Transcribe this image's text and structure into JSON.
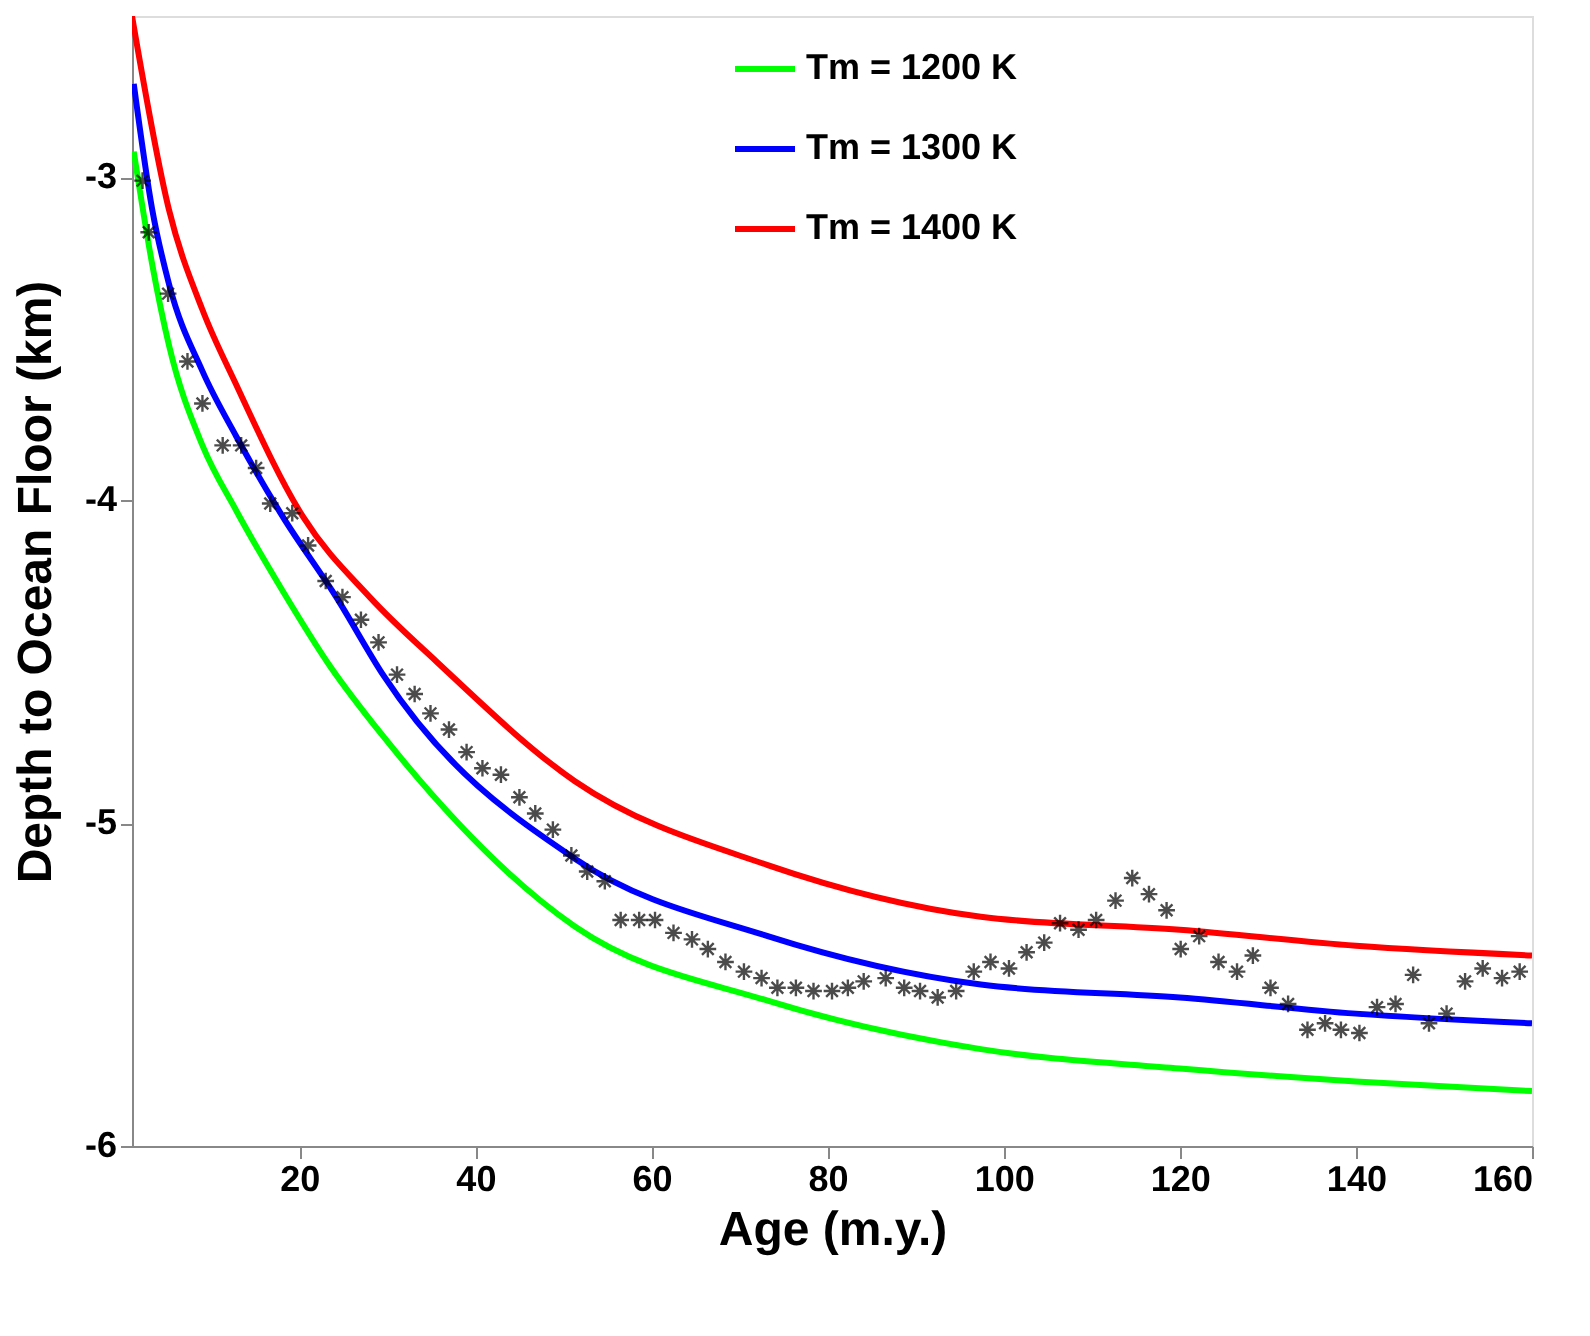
{
  "chart_data": {
    "type": "line",
    "xlabel": "Age (m.y.)",
    "ylabel": "Depth to Ocean Floor (km)",
    "xlim": [
      1,
      160
    ],
    "ylim": [
      -6,
      -2.5
    ],
    "xticks": [
      20,
      40,
      60,
      80,
      100,
      120,
      140,
      160
    ],
    "yticks": [
      -6,
      -5,
      -4,
      -3
    ],
    "grid": false,
    "legend": "top",
    "series": [
      {
        "name": "Tm = 1200 K",
        "color": "#00ff00",
        "x": [
          1.2,
          3.3,
          5.2,
          9,
          12.8,
          18.1,
          23.4,
          29.5,
          51.3,
          73.2,
          97.4,
          120,
          140,
          160
        ],
        "values": [
          -2.92,
          -3.27,
          -3.52,
          -3.83,
          -4.03,
          -4.28,
          -4.51,
          -4.73,
          -5.32,
          -5.55,
          -5.7,
          -5.76,
          -5.8,
          -5.83
        ]
      },
      {
        "name": "Tm = 1300 K",
        "color": "#0000ff",
        "x": [
          1.2,
          3.3,
          5.2,
          9,
          12.8,
          18.1,
          24.2,
          29.5,
          51.3,
          73.2,
          97.4,
          120,
          140,
          160
        ],
        "values": [
          -2.71,
          -3.1,
          -3.33,
          -3.6,
          -3.8,
          -4.05,
          -4.3,
          -4.54,
          -5.11,
          -5.35,
          -5.5,
          -5.54,
          -5.59,
          -5.62
        ]
      },
      {
        "name": "Tm = 1400 K",
        "color": "#ff0000",
        "x": [
          1,
          5.2,
          9,
          12.8,
          20.4,
          28,
          35.6,
          51.3,
          73.2,
          97.4,
          120,
          140,
          160
        ],
        "values": [
          -2.5,
          -3.1,
          -3.41,
          -3.64,
          -4.05,
          -4.3,
          -4.5,
          -4.87,
          -5.13,
          -5.29,
          -5.33,
          -5.38,
          -5.41
        ]
      },
      {
        "type": "scatter",
        "color": "#000000",
        "marker": "cross",
        "x": [
          2.2,
          2.9,
          5.1,
          7.3,
          9,
          11.3,
          13.4,
          15.1,
          16.7,
          19.2,
          21,
          23,
          24.9,
          27,
          29,
          31.1,
          33.1,
          34.9,
          37,
          39,
          40.8,
          42.9,
          45,
          46.8,
          48.8,
          50.9,
          52.7,
          54.7,
          56.5,
          58.6,
          60.4,
          62.5,
          64.6,
          66.4,
          68.4,
          70.5,
          72.5,
          74.3,
          76.4,
          78.4,
          80.5,
          82.3,
          84.1,
          86.6,
          88.7,
          90.5,
          92.5,
          94.6,
          96.6,
          98.5,
          100.6,
          102.6,
          104.6,
          106.4,
          108.5,
          110.5,
          112.7,
          114.6,
          116.5,
          118.5,
          120.1,
          122.2,
          124.4,
          126.5,
          128.3,
          130.3,
          132.3,
          134.5,
          136.5,
          138.3,
          140.4,
          142.4,
          144.5,
          146.5,
          148.3,
          150.3,
          152.4,
          154.4,
          156.6,
          158.6
        ],
        "values": [
          -3.01,
          -3.17,
          -3.36,
          -3.57,
          -3.7,
          -3.83,
          -3.83,
          -3.9,
          -4.01,
          -4.04,
          -4.14,
          -4.25,
          -4.3,
          -4.37,
          -4.44,
          -4.54,
          -4.6,
          -4.66,
          -4.71,
          -4.78,
          -4.83,
          -4.85,
          -4.92,
          -4.97,
          -5.02,
          -5.1,
          -5.15,
          -5.18,
          -5.3,
          -5.3,
          -5.3,
          -5.34,
          -5.36,
          -5.39,
          -5.43,
          -5.46,
          -5.48,
          -5.51,
          -5.51,
          -5.52,
          -5.52,
          -5.51,
          -5.49,
          -5.48,
          -5.51,
          -5.52,
          -5.54,
          -5.52,
          -5.46,
          -5.43,
          -5.45,
          -5.4,
          -5.37,
          -5.31,
          -5.33,
          -5.3,
          -5.24,
          -5.17,
          -5.22,
          -5.27,
          -5.39,
          -5.35,
          -5.43,
          -5.46,
          -5.41,
          -5.51,
          -5.56,
          -5.64,
          -5.62,
          -5.64,
          -5.65,
          -5.57,
          -5.56,
          -5.47,
          -5.62,
          -5.59,
          -5.49,
          -5.45,
          -5.48,
          -5.46
        ]
      }
    ]
  }
}
